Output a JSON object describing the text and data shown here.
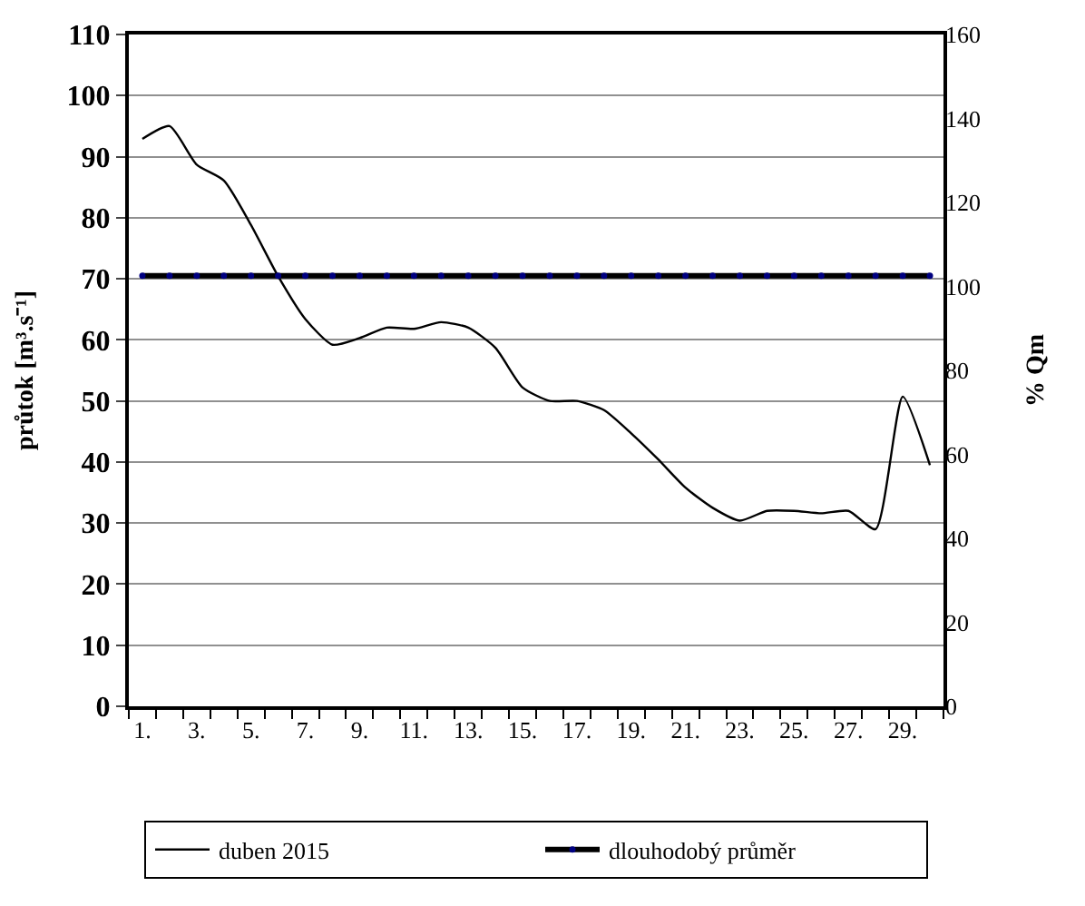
{
  "chart_data": {
    "type": "line",
    "ylabel": "průtok [m³.s⁻¹]",
    "y2label": "% Qm",
    "categories": [
      "1.",
      null,
      "3.",
      null,
      "5.",
      null,
      "7.",
      null,
      "9.",
      null,
      "11.",
      null,
      "13.",
      null,
      "15.",
      null,
      "17.",
      null,
      "19.",
      null,
      "21.",
      null,
      "23.",
      null,
      "25.",
      null,
      "27.",
      null,
      "29.",
      null
    ],
    "series": [
      {
        "name": "duben 2015",
        "color": "#000000",
        "marker": "none",
        "values": [
          92.9,
          95.0,
          88.7,
          86.1,
          78.8,
          70.4,
          63.4,
          59.2,
          60.3,
          62.0,
          61.8,
          62.9,
          62.0,
          58.7,
          52.2,
          50.0,
          50.0,
          48.5,
          44.7,
          40.4,
          35.8,
          32.5,
          30.4,
          32.0,
          32.0,
          31.6,
          32.0,
          29.0,
          50.7,
          39.5
        ]
      },
      {
        "name": "dlouhodobý průměr",
        "color": "#000000",
        "marker": "circle",
        "colors": [
          "#000080",
          "#000080",
          "#000080",
          "#000080",
          "#000080",
          "#000080",
          "#000080",
          "#000080",
          "#000080",
          "#000080",
          "#000080",
          "#000080",
          "#000080",
          "#000080",
          "#000080",
          "#000080",
          "#000080",
          "#000080",
          "#000080",
          "#000080",
          "#000080",
          "#000080",
          "#000080",
          "#000080",
          "#000080",
          "#000080",
          "#000080",
          "#000080",
          "#000080",
          "#000080"
        ],
        "values": [
          70.5,
          70.5,
          70.5,
          70.5,
          70.5,
          70.5,
          70.5,
          70.5,
          70.5,
          70.5,
          70.5,
          70.5,
          70.5,
          70.5,
          70.5,
          70.5,
          70.5,
          70.5,
          70.5,
          70.5,
          70.5,
          70.5,
          70.5,
          70.5,
          70.5,
          70.5,
          70.5,
          70.5,
          70.5,
          70.5
        ]
      }
    ],
    "ylim": [
      0,
      110
    ],
    "yticks": [
      0,
      10,
      20,
      30,
      40,
      50,
      60,
      70,
      80,
      90,
      100,
      110
    ],
    "y2lim": [
      0,
      160
    ],
    "y2ticks": [
      0,
      20,
      40,
      60,
      80,
      100,
      120,
      140,
      160
    ],
    "grid": "y",
    "legend": "bottom"
  }
}
